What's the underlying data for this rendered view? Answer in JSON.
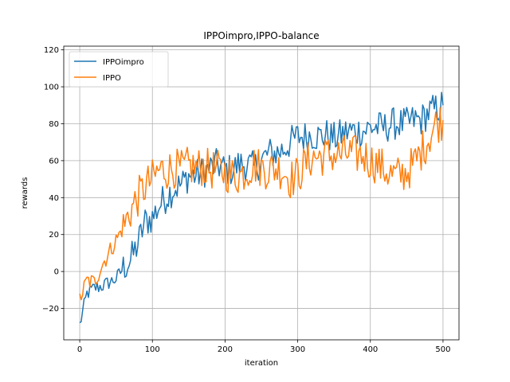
{
  "chart_data": {
    "type": "line",
    "title": "IPPOimpro,IPPO-balance",
    "xlabel": "iteration",
    "ylabel": "rewards",
    "xlim": [
      -22,
      522
    ],
    "ylim": [
      -37,
      122
    ],
    "xticks": [
      0,
      100,
      200,
      300,
      400,
      500
    ],
    "yticks": [
      -20,
      0,
      20,
      40,
      60,
      80,
      100,
      120
    ],
    "grid": true,
    "legend_position": "upper-left",
    "series": [
      {
        "name": "IPPOimpro",
        "color": "#1f77b4",
        "x": [
          0,
          10,
          20,
          30,
          40,
          50,
          60,
          70,
          80,
          90,
          100,
          110,
          120,
          130,
          140,
          150,
          160,
          170,
          180,
          190,
          200,
          210,
          220,
          230,
          240,
          250,
          260,
          270,
          280,
          290,
          300,
          310,
          320,
          330,
          340,
          350,
          360,
          370,
          380,
          390,
          400,
          410,
          420,
          430,
          440,
          450,
          460,
          470,
          480,
          490,
          500
        ],
        "y": [
          -29,
          -12,
          -9,
          -8,
          -6,
          -4,
          2,
          6,
          15,
          27,
          29,
          36,
          41,
          45,
          47,
          52,
          52,
          54,
          56,
          58,
          55,
          55,
          58,
          58,
          56,
          60,
          64,
          64,
          66,
          70,
          73,
          73,
          74,
          73,
          74,
          72,
          74,
          76,
          76,
          76,
          78,
          78,
          78,
          80,
          80,
          80,
          82,
          82,
          86,
          88,
          90
        ]
      },
      {
        "name": "IPPO",
        "color": "#ff7f0e",
        "x": [
          0,
          10,
          20,
          30,
          40,
          50,
          60,
          70,
          80,
          90,
          100,
          110,
          120,
          130,
          140,
          150,
          160,
          170,
          180,
          190,
          200,
          210,
          220,
          230,
          240,
          250,
          260,
          270,
          280,
          290,
          300,
          310,
          320,
          330,
          340,
          350,
          360,
          370,
          380,
          390,
          400,
          410,
          420,
          430,
          440,
          450,
          460,
          470,
          480,
          490,
          500
        ],
        "y": [
          -15,
          -5,
          -6,
          3,
          10,
          17,
          24,
          33,
          40,
          46,
          50,
          55,
          55,
          56,
          55,
          57,
          56,
          57,
          55,
          55,
          54,
          52,
          52,
          55,
          58,
          56,
          55,
          56,
          55,
          50,
          52,
          58,
          62,
          62,
          63,
          63,
          63,
          64,
          63,
          63,
          60,
          58,
          55,
          52,
          52,
          54,
          58,
          65,
          72,
          80,
          82
        ]
      }
    ]
  }
}
